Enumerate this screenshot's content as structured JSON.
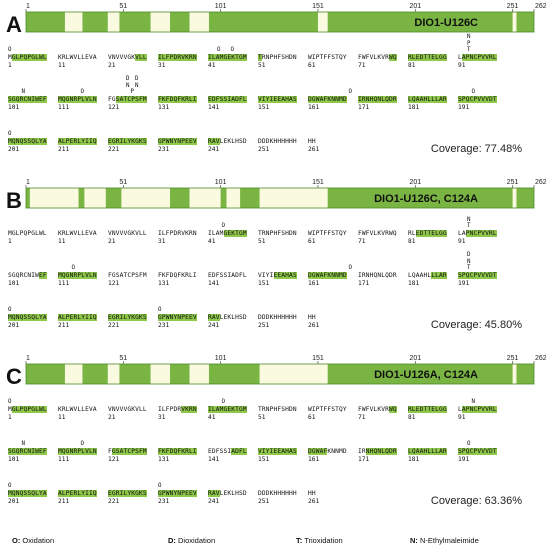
{
  "axis_ticks": [
    1,
    51,
    101,
    151,
    201,
    251,
    262
  ],
  "seq_length": 262,
  "chunks": [
    "MGLPQPGLWL",
    "KRLWVLLEVA",
    "VNVVVGKVLL",
    "ILFPDRVKRN",
    "ILAMGEKTGM",
    "TRNPHFSHDN",
    "WIPTFFSTQY",
    "FWFVLKVRWQ",
    "RLEDTTELGG",
    "LAPNCPVVRL",
    "SGQRCNIWEF",
    "MQGNRPLVLN",
    "FGSATCPSFM",
    "FKFDQFKRLI",
    "EDFSSIADFL",
    "VIYIEEAHAS",
    "DGWAFKNNMD",
    "IRNHQNLQDR",
    "LQAAHLLLAR",
    "SPQCPVVVDT",
    "MQNQSSQLYA",
    "ALPERLYIIQ",
    "EGRILYKGKS",
    "GPWNYNPEEV",
    "RAVLEKLHSD",
    "DDDKHHHHHH",
    "HH"
  ],
  "panels": [
    {
      "label": "A",
      "title": "DIO1-U126C",
      "coverage": "Coverage: 77.48%",
      "segments": [
        [
          1,
          20
        ],
        [
          30,
          42
        ],
        [
          49,
          64
        ],
        [
          75,
          84
        ],
        [
          95,
          150
        ],
        [
          156,
          250
        ],
        [
          253,
          262
        ]
      ],
      "highlights": [
        [
          [
            0,
            1,
            10
          ]
        ],
        [
          [
            2,
            7,
            10
          ],
          [
            3,
            0,
            10
          ],
          [
            4,
            0,
            10
          ],
          [
            5,
            0,
            1
          ]
        ],
        [
          [
            7,
            8,
            10
          ],
          [
            8,
            0,
            10
          ],
          [
            9,
            1,
            10
          ]
        ],
        [
          [
            10,
            0,
            10
          ],
          [
            11,
            0,
            10
          ],
          [
            12,
            2,
            10
          ],
          [
            13,
            0,
            10
          ],
          [
            14,
            0,
            10
          ],
          [
            15,
            0,
            10
          ],
          [
            16,
            0,
            10
          ],
          [
            17,
            0,
            10
          ],
          [
            18,
            0,
            10
          ],
          [
            19,
            0,
            10
          ]
        ],
        [
          [
            20,
            0,
            10
          ],
          [
            21,
            0,
            10
          ],
          [
            22,
            0,
            10
          ],
          [
            23,
            0,
            10
          ],
          [
            24,
            0,
            3
          ]
        ]
      ],
      "mods": [
        {
          "t": "O",
          "c": 0,
          "p": 0,
          "r": 0,
          "l": 0
        },
        {
          "t": "O",
          "c": 4,
          "p": 2,
          "r": 0,
          "l": 0
        },
        {
          "t": "O",
          "c": 4,
          "p": 5,
          "r": 0,
          "l": 0
        },
        {
          "t": "T",
          "c": 9,
          "p": 2,
          "r": 0,
          "l": 0
        },
        {
          "t": "P",
          "c": 9,
          "p": 2,
          "r": 0,
          "l": 1
        },
        {
          "t": "N",
          "c": 9,
          "p": 2,
          "r": 0,
          "l": 2
        },
        {
          "t": "N",
          "c": 10,
          "p": 3,
          "r": 1,
          "l": 0
        },
        {
          "t": "O",
          "c": 11,
          "p": 5,
          "r": 1,
          "l": 0
        },
        {
          "t": "P",
          "c": 12,
          "p": 5,
          "r": 1,
          "l": 0
        },
        {
          "t": "N",
          "c": 12,
          "p": 4,
          "r": 1,
          "l": 1
        },
        {
          "t": "N",
          "c": 12,
          "p": 6,
          "r": 1,
          "l": 1
        },
        {
          "t": "D",
          "c": 12,
          "p": 4,
          "r": 1,
          "l": 2
        },
        {
          "t": "D",
          "c": 12,
          "p": 6,
          "r": 1,
          "l": 2
        },
        {
          "t": "O",
          "c": 16,
          "p": 9,
          "r": 1,
          "l": 0
        },
        {
          "t": "O",
          "c": 19,
          "p": 3,
          "r": 1,
          "l": 0
        },
        {
          "t": "O",
          "c": 20,
          "p": 0,
          "r": 2,
          "l": 0
        }
      ]
    },
    {
      "label": "B",
      "title": "DIO1-U126C, C124A",
      "coverage": "Coverage: 45.80%",
      "segments": [
        [
          1,
          2
        ],
        [
          28,
          30
        ],
        [
          42,
          49
        ],
        [
          75,
          84
        ],
        [
          101,
          103
        ],
        [
          111,
          120
        ],
        [
          156,
          250
        ],
        [
          253,
          262
        ]
      ],
      "highlights": [
        [
          [
            4,
            4,
            10
          ]
        ],
        [
          [
            8,
            2,
            10
          ],
          [
            9,
            2,
            10
          ]
        ],
        [
          [
            10,
            8,
            10
          ],
          [
            11,
            0,
            10
          ],
          [
            15,
            4,
            10
          ],
          [
            16,
            0,
            10
          ],
          [
            18,
            6,
            10
          ],
          [
            19,
            0,
            10
          ]
        ],
        [
          [
            20,
            0,
            10
          ],
          [
            21,
            0,
            10
          ],
          [
            22,
            0,
            10
          ],
          [
            23,
            0,
            10
          ],
          [
            24,
            0,
            3
          ]
        ]
      ],
      "mods": [
        {
          "t": "O",
          "c": 4,
          "p": 3,
          "r": 0,
          "l": 0
        },
        {
          "t": "T",
          "c": 9,
          "p": 2,
          "r": 0,
          "l": 0
        },
        {
          "t": "N",
          "c": 9,
          "p": 2,
          "r": 0,
          "l": 1
        },
        {
          "t": "O",
          "c": 11,
          "p": 3,
          "r": 1,
          "l": 0
        },
        {
          "t": "O",
          "c": 16,
          "p": 9,
          "r": 1,
          "l": 0
        },
        {
          "t": "T",
          "c": 19,
          "p": 2,
          "r": 1,
          "l": 0
        },
        {
          "t": "N",
          "c": 19,
          "p": 2,
          "r": 1,
          "l": 1
        },
        {
          "t": "D",
          "c": 19,
          "p": 2,
          "r": 1,
          "l": 2
        },
        {
          "t": "O",
          "c": 20,
          "p": 0,
          "r": 2,
          "l": 0
        },
        {
          "t": "O",
          "c": 23,
          "p": 0,
          "r": 2,
          "l": 0
        }
      ]
    },
    {
      "label": "C",
      "title": "DIO1-U126A, C124A",
      "coverage": "Coverage: 63.36%",
      "segments": [
        [
          1,
          20
        ],
        [
          30,
          42
        ],
        [
          49,
          64
        ],
        [
          75,
          84
        ],
        [
          95,
          120
        ],
        [
          156,
          250
        ],
        [
          253,
          262
        ]
      ],
      "highlights": [
        [
          [
            0,
            1,
            10
          ]
        ],
        [
          [
            3,
            6,
            10
          ],
          [
            4,
            0,
            10
          ]
        ],
        [
          [
            7,
            8,
            10
          ],
          [
            8,
            0,
            10
          ],
          [
            9,
            1,
            10
          ]
        ],
        [
          [
            10,
            0,
            10
          ],
          [
            11,
            0,
            10
          ],
          [
            12,
            1,
            10
          ],
          [
            13,
            0,
            10
          ],
          [
            14,
            6,
            10
          ],
          [
            15,
            0,
            10
          ],
          [
            16,
            0,
            5
          ],
          [
            17,
            2,
            10
          ],
          [
            18,
            0,
            10
          ],
          [
            19,
            0,
            10
          ]
        ],
        [
          [
            20,
            0,
            10
          ],
          [
            21,
            0,
            10
          ],
          [
            22,
            0,
            10
          ],
          [
            23,
            0,
            10
          ],
          [
            24,
            0,
            3
          ]
        ]
      ],
      "mods": [
        {
          "t": "O",
          "c": 0,
          "p": 0,
          "r": 0,
          "l": 0
        },
        {
          "t": "O",
          "c": 4,
          "p": 3,
          "r": 0,
          "l": 0
        },
        {
          "t": "N",
          "c": 9,
          "p": 3,
          "r": 0,
          "l": 0
        },
        {
          "t": "N",
          "c": 10,
          "p": 3,
          "r": 1,
          "l": 0
        },
        {
          "t": "O",
          "c": 11,
          "p": 5,
          "r": 1,
          "l": 0
        },
        {
          "t": "O",
          "c": 19,
          "p": 2,
          "r": 1,
          "l": 0
        },
        {
          "t": "O",
          "c": 20,
          "p": 0,
          "r": 2,
          "l": 0
        },
        {
          "t": "O",
          "c": 23,
          "p": 0,
          "r": 2,
          "l": 0
        }
      ]
    }
  ],
  "legend": [
    {
      "key": "O:",
      "text": " Oxidation"
    },
    {
      "key": "D:",
      "text": " Dioxidation"
    },
    {
      "key": "T:",
      "text": " Trioxidation"
    },
    {
      "key": "N:",
      "text": " N-Ethylmaleimide"
    }
  ],
  "colors": {
    "covered": "#7ab443",
    "uncovered": "#fafae0",
    "highlight": "#8fc84a",
    "border": "#4f8a2a"
  }
}
